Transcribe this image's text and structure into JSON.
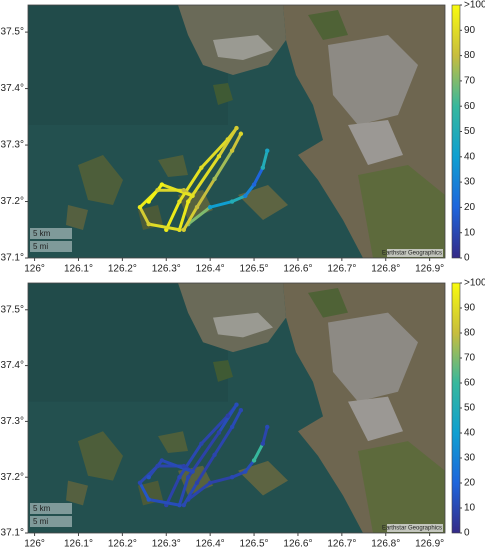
{
  "chart_data": [
    {
      "type": "map",
      "colormap": "parula",
      "xlim": [
        125.985,
        126.935
      ],
      "ylim": [
        37.1,
        37.548
      ],
      "xticks": [
        {
          "value": 126,
          "label": "126°"
        },
        {
          "value": 126.1,
          "label": "126.1°"
        },
        {
          "value": 126.2,
          "label": "126.2°"
        },
        {
          "value": 126.3,
          "label": "126.3°"
        },
        {
          "value": 126.4,
          "label": "126.4°"
        },
        {
          "value": 126.5,
          "label": "126.5°"
        },
        {
          "value": 126.6,
          "label": "126.6°"
        },
        {
          "value": 126.7,
          "label": "126.7°"
        },
        {
          "value": 126.8,
          "label": "126.8°"
        },
        {
          "value": 126.9,
          "label": "126.9°"
        }
      ],
      "yticks": [
        {
          "value": 37.1,
          "label": "37.1°"
        },
        {
          "value": 37.2,
          "label": "37.2°"
        },
        {
          "value": 37.3,
          "label": "37.3°"
        },
        {
          "value": 37.4,
          "label": "37.4°"
        },
        {
          "value": 37.5,
          "label": "37.5°"
        }
      ],
      "clim": [
        0,
        100
      ],
      "cticks": [
        0,
        10,
        20,
        30,
        40,
        50,
        60,
        70,
        80,
        90,
        {
          "value": 100,
          "label": ">100"
        }
      ],
      "scale_labels": [
        "5 km",
        "5 mi"
      ],
      "attribution": "Earthstar Geographics",
      "tracks": [
        {
          "lon": [
            126.3,
            126.33,
            126.38,
            126.44,
            126.46,
            126.42,
            126.35,
            126.33
          ],
          "lat": [
            37.15,
            37.2,
            37.26,
            37.31,
            37.33,
            37.28,
            37.2,
            37.15
          ],
          "values": [
            95,
            92,
            90,
            88,
            85,
            90,
            94,
            96
          ]
        },
        {
          "lon": [
            126.33,
            126.26,
            126.24,
            126.28,
            126.34,
            126.36,
            126.29,
            126.26
          ],
          "lat": [
            37.15,
            37.16,
            37.19,
            37.22,
            37.22,
            37.21,
            37.23,
            37.2
          ],
          "values": [
            90,
            85,
            95,
            88,
            80,
            92,
            97,
            99
          ]
        },
        {
          "lon": [
            126.35,
            126.4,
            126.45,
            126.48,
            126.5,
            126.52,
            126.53
          ],
          "lat": [
            37.16,
            37.19,
            37.2,
            37.21,
            37.23,
            37.26,
            37.29
          ],
          "values": [
            70,
            40,
            50,
            30,
            20,
            50,
            45
          ]
        },
        {
          "lon": [
            126.34,
            126.37,
            126.41,
            126.45,
            126.47
          ],
          "lat": [
            37.15,
            37.19,
            37.24,
            37.29,
            37.32
          ],
          "values": [
            85,
            80,
            75,
            82,
            88
          ]
        }
      ]
    },
    {
      "type": "map",
      "colormap": "parula",
      "xlim": [
        125.985,
        126.935
      ],
      "ylim": [
        37.1,
        37.548
      ],
      "xticks": [
        {
          "value": 126,
          "label": "126°"
        },
        {
          "value": 126.1,
          "label": "126.1°"
        },
        {
          "value": 126.2,
          "label": "126.2°"
        },
        {
          "value": 126.3,
          "label": "126.3°"
        },
        {
          "value": 126.4,
          "label": "126.4°"
        },
        {
          "value": 126.5,
          "label": "126.5°"
        },
        {
          "value": 126.6,
          "label": "126.6°"
        },
        {
          "value": 126.7,
          "label": "126.7°"
        },
        {
          "value": 126.8,
          "label": "126.8°"
        },
        {
          "value": 126.9,
          "label": "126.9°"
        }
      ],
      "yticks": [
        {
          "value": 37.1,
          "label": "37.1°"
        },
        {
          "value": 37.2,
          "label": "37.2°"
        },
        {
          "value": 37.3,
          "label": "37.3°"
        },
        {
          "value": 37.4,
          "label": "37.4°"
        },
        {
          "value": 37.5,
          "label": "37.5°"
        }
      ],
      "clim": [
        0,
        100
      ],
      "cticks": [
        0,
        10,
        20,
        30,
        40,
        50,
        60,
        70,
        80,
        90,
        {
          "value": 100,
          "label": ">100"
        }
      ],
      "scale_labels": [
        "5 km",
        "5 mi"
      ],
      "attribution": "Earthstar Geographics",
      "tracks": [
        {
          "lon": [
            126.3,
            126.33,
            126.38,
            126.44,
            126.46,
            126.42,
            126.35,
            126.33
          ],
          "lat": [
            37.15,
            37.2,
            37.26,
            37.31,
            37.33,
            37.28,
            37.2,
            37.15
          ],
          "values": [
            8,
            10,
            9,
            7,
            12,
            8,
            10,
            9
          ]
        },
        {
          "lon": [
            126.33,
            126.26,
            126.24,
            126.28,
            126.34,
            126.36,
            126.29,
            126.26
          ],
          "lat": [
            37.15,
            37.16,
            37.19,
            37.22,
            37.22,
            37.21,
            37.23,
            37.2
          ],
          "values": [
            12,
            15,
            10,
            9,
            8,
            11,
            10,
            14
          ]
        },
        {
          "lon": [
            126.35,
            126.4,
            126.45,
            126.48,
            126.5,
            126.52,
            126.53
          ],
          "lat": [
            37.16,
            37.19,
            37.2,
            37.21,
            37.23,
            37.26,
            37.29
          ],
          "values": [
            9,
            8,
            10,
            12,
            60,
            9,
            11
          ]
        },
        {
          "lon": [
            126.34,
            126.37,
            126.41,
            126.45,
            126.47
          ],
          "lat": [
            37.15,
            37.19,
            37.24,
            37.29,
            37.32
          ],
          "values": [
            10,
            8,
            9,
            11,
            10
          ]
        }
      ]
    }
  ]
}
